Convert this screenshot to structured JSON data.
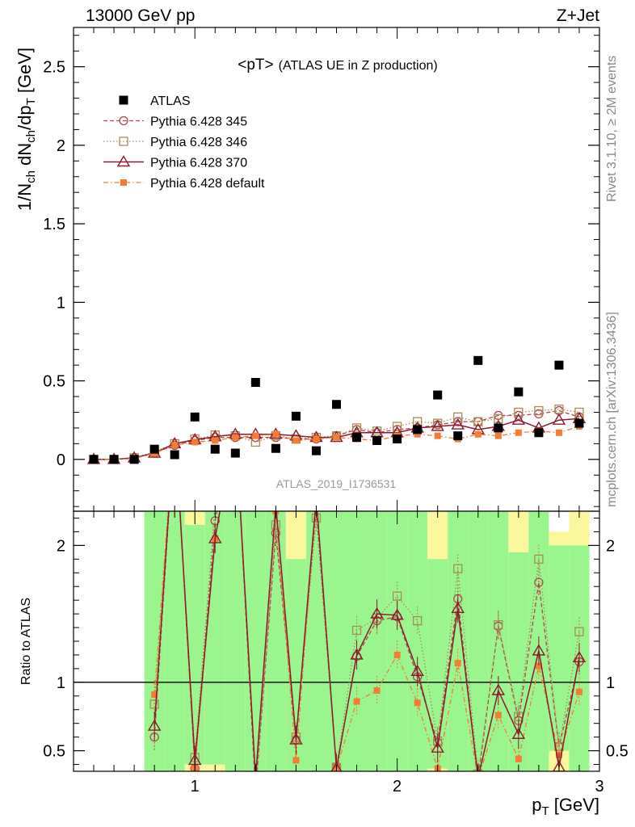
{
  "header": {
    "left": "13000 GeV pp",
    "right": "Z+Jet"
  },
  "side_labels": {
    "rivet": "Rivet 3.1.10, ≥ 2M events",
    "mcplots": "mcplots.cern.ch [arXiv:1306.3436]"
  },
  "colors": {
    "data": "#000000",
    "pythia345": "#b5444a",
    "pythia346": "#a58e55",
    "pythia370": "#8b1a2e",
    "pythia_default": "#f47c34",
    "band_inner": "#9af58f",
    "band_outer": "#fbf79d"
  },
  "chart_data": [
    {
      "type": "scatter",
      "panel": "main",
      "title": "<pT>",
      "subtitle": "(ATLAS UE in Z production)",
      "ylabel": {
        "a": "1/N",
        "b": "ch",
        "c": " dN",
        "d": "ch",
        "e": "/dp",
        "f": "T",
        "g": " [GeV]"
      },
      "xlim": [
        0.4,
        3.0
      ],
      "ylim": [
        -0.33,
        2.75
      ],
      "yticks": [
        0,
        0.5,
        1,
        1.5,
        2,
        2.5
      ],
      "ytick_labels": [
        "0",
        "0.5",
        "1",
        "1.5",
        "2",
        "2.5"
      ],
      "legend_position": "top-left",
      "watermark": "ATLAS_2019_I1736531",
      "x": [
        0.5,
        0.6,
        0.7,
        0.8,
        0.9,
        1.0,
        1.1,
        1.2,
        1.3,
        1.4,
        1.5,
        1.6,
        1.7,
        1.8,
        1.9,
        2.0,
        2.1,
        2.2,
        2.3,
        2.4,
        2.5,
        2.6,
        2.7,
        2.8,
        2.9
      ],
      "series": [
        {
          "name": "ATLAS",
          "style": "data",
          "values": [
            0.0,
            0.0,
            0.0,
            0.065,
            0.03,
            0.27,
            0.065,
            0.04,
            0.49,
            0.07,
            0.275,
            0.055,
            0.35,
            0.14,
            0.12,
            0.13,
            0.19,
            0.41,
            0.15,
            0.63,
            0.2,
            0.43,
            0.17,
            0.6,
            0.23
          ]
        },
        {
          "name": "Pythia 6.428 345",
          "style": "p345",
          "values": [
            0.0,
            0.0,
            0.01,
            0.04,
            0.09,
            0.12,
            0.14,
            0.14,
            0.14,
            0.14,
            0.13,
            0.13,
            0.15,
            0.19,
            0.17,
            0.19,
            0.2,
            0.22,
            0.24,
            0.24,
            0.28,
            0.28,
            0.29,
            0.31,
            0.27
          ]
        },
        {
          "name": "Pythia 6.428 346",
          "style": "p346",
          "values": [
            0.0,
            0.0,
            0.01,
            0.05,
            0.1,
            0.13,
            0.155,
            0.15,
            0.11,
            0.15,
            0.13,
            0.14,
            0.15,
            0.2,
            0.18,
            0.21,
            0.24,
            0.23,
            0.27,
            0.24,
            0.26,
            0.3,
            0.31,
            0.32,
            0.3
          ]
        },
        {
          "name": "Pythia 6.428 370",
          "style": "p370",
          "values": [
            0.0,
            0.0,
            0.01,
            0.04,
            0.1,
            0.125,
            0.145,
            0.16,
            0.16,
            0.16,
            0.15,
            0.14,
            0.14,
            0.17,
            0.17,
            0.17,
            0.2,
            0.21,
            0.22,
            0.19,
            0.21,
            0.25,
            0.2,
            0.25,
            0.26
          ]
        },
        {
          "name": "Pythia 6.428 default",
          "style": "pdef",
          "values": [
            0.0,
            0.0,
            0.005,
            0.04,
            0.09,
            0.11,
            0.12,
            0.14,
            0.15,
            0.16,
            0.12,
            0.13,
            0.14,
            0.13,
            0.12,
            0.15,
            0.16,
            0.15,
            0.13,
            0.16,
            0.15,
            0.17,
            0.18,
            0.17,
            0.21
          ]
        }
      ]
    },
    {
      "type": "line",
      "panel": "ratio",
      "ylabel": "Ratio to ATLAS",
      "xlabel": {
        "a": "p",
        "b": "T",
        "c": " [GeV]"
      },
      "xlim": [
        0.4,
        3.0
      ],
      "ylim": [
        0.35,
        2.25
      ],
      "yticks": [
        0.5,
        1,
        2
      ],
      "ytick_labels": [
        "0.5",
        "1",
        "2"
      ],
      "xticks": [
        1,
        2,
        3
      ],
      "xtick_labels": [
        "1",
        "2",
        "3"
      ],
      "reference_line": 1,
      "band_x_edges": [
        0.75,
        0.85,
        0.95,
        1.05,
        1.15,
        1.25,
        1.35,
        1.45,
        1.55,
        1.65,
        1.75,
        1.85,
        1.95,
        2.05,
        2.15,
        2.25,
        2.35,
        2.45,
        2.55,
        2.65,
        2.75,
        2.85,
        2.95
      ],
      "band_inner": [
        [
          0.35,
          2.25
        ],
        [
          0.35,
          2.25
        ],
        [
          0.4,
          2.15
        ],
        [
          0.4,
          2.25
        ],
        [
          0.35,
          2.25
        ],
        [
          0.35,
          2.25
        ],
        [
          0.35,
          2.25
        ],
        [
          0.35,
          1.9
        ],
        [
          0.35,
          2.25
        ],
        [
          0.35,
          2.25
        ],
        [
          0.35,
          2.25
        ],
        [
          0.35,
          2.25
        ],
        [
          0.35,
          2.25
        ],
        [
          0.35,
          2.25
        ],
        [
          0.37,
          1.9
        ],
        [
          0.35,
          2.25
        ],
        [
          0.35,
          2.25
        ],
        [
          0.35,
          2.25
        ],
        [
          0.35,
          1.95
        ],
        [
          0.35,
          2.25
        ],
        [
          0.5,
          2.0
        ],
        [
          0.35,
          2.0
        ]
      ],
      "band_outer": [
        [
          0.35,
          2.25
        ],
        [
          0.35,
          2.25
        ],
        [
          0.35,
          2.25
        ],
        [
          0.35,
          2.25
        ],
        [
          0.35,
          2.25
        ],
        [
          0.35,
          2.25
        ],
        [
          0.35,
          2.25
        ],
        [
          0.35,
          2.25
        ],
        [
          0.35,
          2.25
        ],
        [
          0.35,
          2.25
        ],
        [
          0.35,
          2.25
        ],
        [
          0.35,
          2.25
        ],
        [
          0.35,
          2.25
        ],
        [
          0.35,
          2.25
        ],
        [
          0.35,
          2.25
        ],
        [
          0.35,
          2.25
        ],
        [
          0.35,
          2.25
        ],
        [
          0.35,
          2.25
        ],
        [
          0.35,
          2.25
        ],
        [
          0.35,
          2.25
        ],
        [
          0.35,
          2.1
        ],
        [
          0.35,
          2.25
        ]
      ],
      "x": [
        0.8,
        0.9,
        1.0,
        1.1,
        1.2,
        1.3,
        1.4,
        1.5,
        1.6,
        1.7,
        1.8,
        1.9,
        2.0,
        2.1,
        2.2,
        2.3,
        2.4,
        2.5,
        2.6,
        2.7,
        2.8,
        2.9
      ],
      "series": [
        {
          "name": "Pythia 6.428 345",
          "style": "p345",
          "values": [
            0.6,
            2.9,
            0.37,
            2.18,
            2.9,
            0.2,
            2.09,
            0.58,
            2.28,
            0.38,
            1.19,
            1.45,
            1.48,
            1.04,
            0.56,
            1.61,
            0.3,
            1.41,
            0.72,
            1.73,
            0.53,
            1.15
          ]
        },
        {
          "name": "Pythia 6.428 346",
          "style": "p346",
          "values": [
            0.84,
            2.9,
            0.45,
            2.3,
            2.9,
            0.22,
            2.15,
            0.6,
            2.2,
            0.38,
            1.38,
            1.47,
            1.63,
            1.45,
            0.57,
            1.83,
            0.33,
            1.42,
            0.75,
            1.9,
            0.53,
            1.37
          ]
        },
        {
          "name": "Pythia 6.428 370",
          "style": "p370",
          "values": [
            0.68,
            2.9,
            0.43,
            2.05,
            2.9,
            0.3,
            2.3,
            0.58,
            2.35,
            0.37,
            1.2,
            1.5,
            1.49,
            1.08,
            0.52,
            1.54,
            0.3,
            0.94,
            0.62,
            1.23,
            0.38,
            1.18
          ]
        },
        {
          "name": "Pythia 6.428 default",
          "style": "pdef",
          "values": [
            0.91,
            2.9,
            0.37,
            2.05,
            2.9,
            0.28,
            2.25,
            0.43,
            2.35,
            0.37,
            0.86,
            0.94,
            1.2,
            0.85,
            0.37,
            1.14,
            0.3,
            0.76,
            0.44,
            1.12,
            0.47,
            0.93
          ]
        }
      ]
    }
  ]
}
